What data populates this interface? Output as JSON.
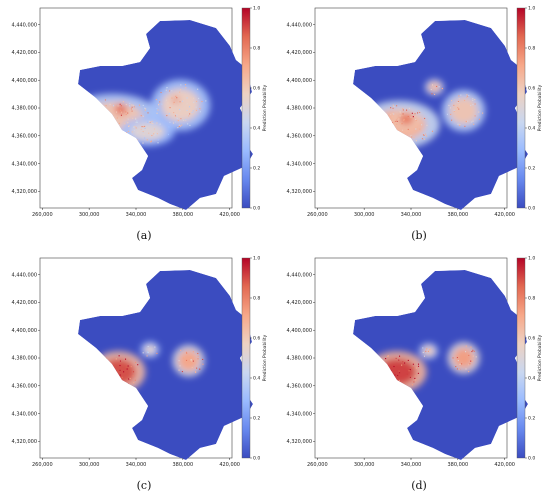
{
  "colors": {
    "basin": "#3b4cc0",
    "low": "#7f9ef0",
    "mid": "#f1b79d",
    "high": "#e7745b",
    "peak": "#b40426",
    "colormap": [
      "#3b4cc0",
      "#6788ee",
      "#9abbff",
      "#c9d7f0",
      "#edd1c2",
      "#f7a889",
      "#e26952",
      "#b40426"
    ]
  },
  "chart_data": [
    {
      "type": "heatmap",
      "caption": "(a)",
      "x_ticks": [
        "260,000",
        "300,000",
        "340,000",
        "380,000",
        "420,000"
      ],
      "y_ticks": [
        "4,440,000",
        "4,420,000",
        "4,400,000",
        "4,380,000",
        "4,360,000",
        "4,340,000",
        "4,320,000"
      ],
      "colorbar_label": "Prediction Probability",
      "colorbar_ticks": [
        "1.0",
        "0.8",
        "0.6",
        "0.4",
        "0.2",
        "0.0"
      ],
      "colorbar_range": [
        0.0,
        1.0
      ],
      "hotspots": [
        {
          "x": 320000,
          "y": 4373000,
          "rx": 35000,
          "ry": 15000,
          "value": 0.62
        },
        {
          "x": 378000,
          "y": 4382000,
          "rx": 22000,
          "ry": 16000,
          "value": 0.58
        },
        {
          "x": 350000,
          "y": 4363000,
          "rx": 20000,
          "ry": 9000,
          "value": 0.52
        },
        {
          "x": 327000,
          "y": 4379000,
          "rx": 7000,
          "ry": 5000,
          "value": 0.85
        },
        {
          "x": 374000,
          "y": 4386000,
          "rx": 4000,
          "ry": 3000,
          "value": 0.8
        }
      ]
    },
    {
      "type": "heatmap",
      "caption": "(b)",
      "x_ticks": [
        "260,000",
        "300,000",
        "340,000",
        "380,000",
        "420,000"
      ],
      "y_ticks": [
        "4,440,000",
        "4,420,000",
        "4,400,000",
        "4,380,000",
        "4,360,000",
        "4,340,000",
        "4,320,000"
      ],
      "colorbar_label": "Prediction Probability",
      "colorbar_ticks": [
        "1.0",
        "0.8",
        "0.6",
        "0.4",
        "0.2",
        "0.0"
      ],
      "colorbar_range": [
        0.0,
        1.0
      ],
      "hotspots": [
        {
          "x": 330000,
          "y": 4368000,
          "rx": 30000,
          "ry": 15000,
          "value": 0.68
        },
        {
          "x": 385000,
          "y": 4378000,
          "rx": 16000,
          "ry": 13000,
          "value": 0.62
        },
        {
          "x": 360000,
          "y": 4395000,
          "rx": 7000,
          "ry": 5000,
          "value": 0.66
        },
        {
          "x": 336000,
          "y": 4372000,
          "rx": 9000,
          "ry": 6000,
          "value": 0.82
        }
      ]
    },
    {
      "type": "heatmap",
      "caption": "(c)",
      "x_ticks": [
        "260,000",
        "300,000",
        "340,000",
        "380,000",
        "420,000"
      ],
      "y_ticks": [
        "4,440,000",
        "4,420,000",
        "4,400,000",
        "4,380,000",
        "4,360,000",
        "4,340,000",
        "4,320,000"
      ],
      "colorbar_label": "Prediction Probability",
      "colorbar_ticks": [
        "1.0",
        "0.8",
        "0.6",
        "0.4",
        "0.2",
        "0.0"
      ],
      "colorbar_range": [
        0.0,
        1.0
      ],
      "hotspots": [
        {
          "x": 325000,
          "y": 4370000,
          "rx": 20000,
          "ry": 13000,
          "value": 0.9
        },
        {
          "x": 385000,
          "y": 4378000,
          "rx": 12000,
          "ry": 10000,
          "value": 0.72
        },
        {
          "x": 352000,
          "y": 4386000,
          "rx": 7000,
          "ry": 5000,
          "value": 0.55
        }
      ]
    },
    {
      "type": "heatmap",
      "caption": "(d)",
      "x_ticks": [
        "260,000",
        "300,000",
        "340,000",
        "380,000",
        "420,000"
      ],
      "y_ticks": [
        "4,440,000",
        "4,420,000",
        "4,400,000",
        "4,380,000",
        "4,360,000",
        "4,340,000",
        "4,320,000"
      ],
      "colorbar_label": "Prediction Probability",
      "colorbar_ticks": [
        "1.0",
        "0.8",
        "0.6",
        "0.4",
        "0.2",
        "0.0"
      ],
      "colorbar_range": [
        0.0,
        1.0
      ],
      "hotspots": [
        {
          "x": 328000,
          "y": 4370000,
          "rx": 22000,
          "ry": 13000,
          "value": 0.92
        },
        {
          "x": 385000,
          "y": 4380000,
          "rx": 12000,
          "ry": 10000,
          "value": 0.74
        },
        {
          "x": 355000,
          "y": 4385000,
          "rx": 7000,
          "ry": 5000,
          "value": 0.6
        }
      ]
    }
  ]
}
